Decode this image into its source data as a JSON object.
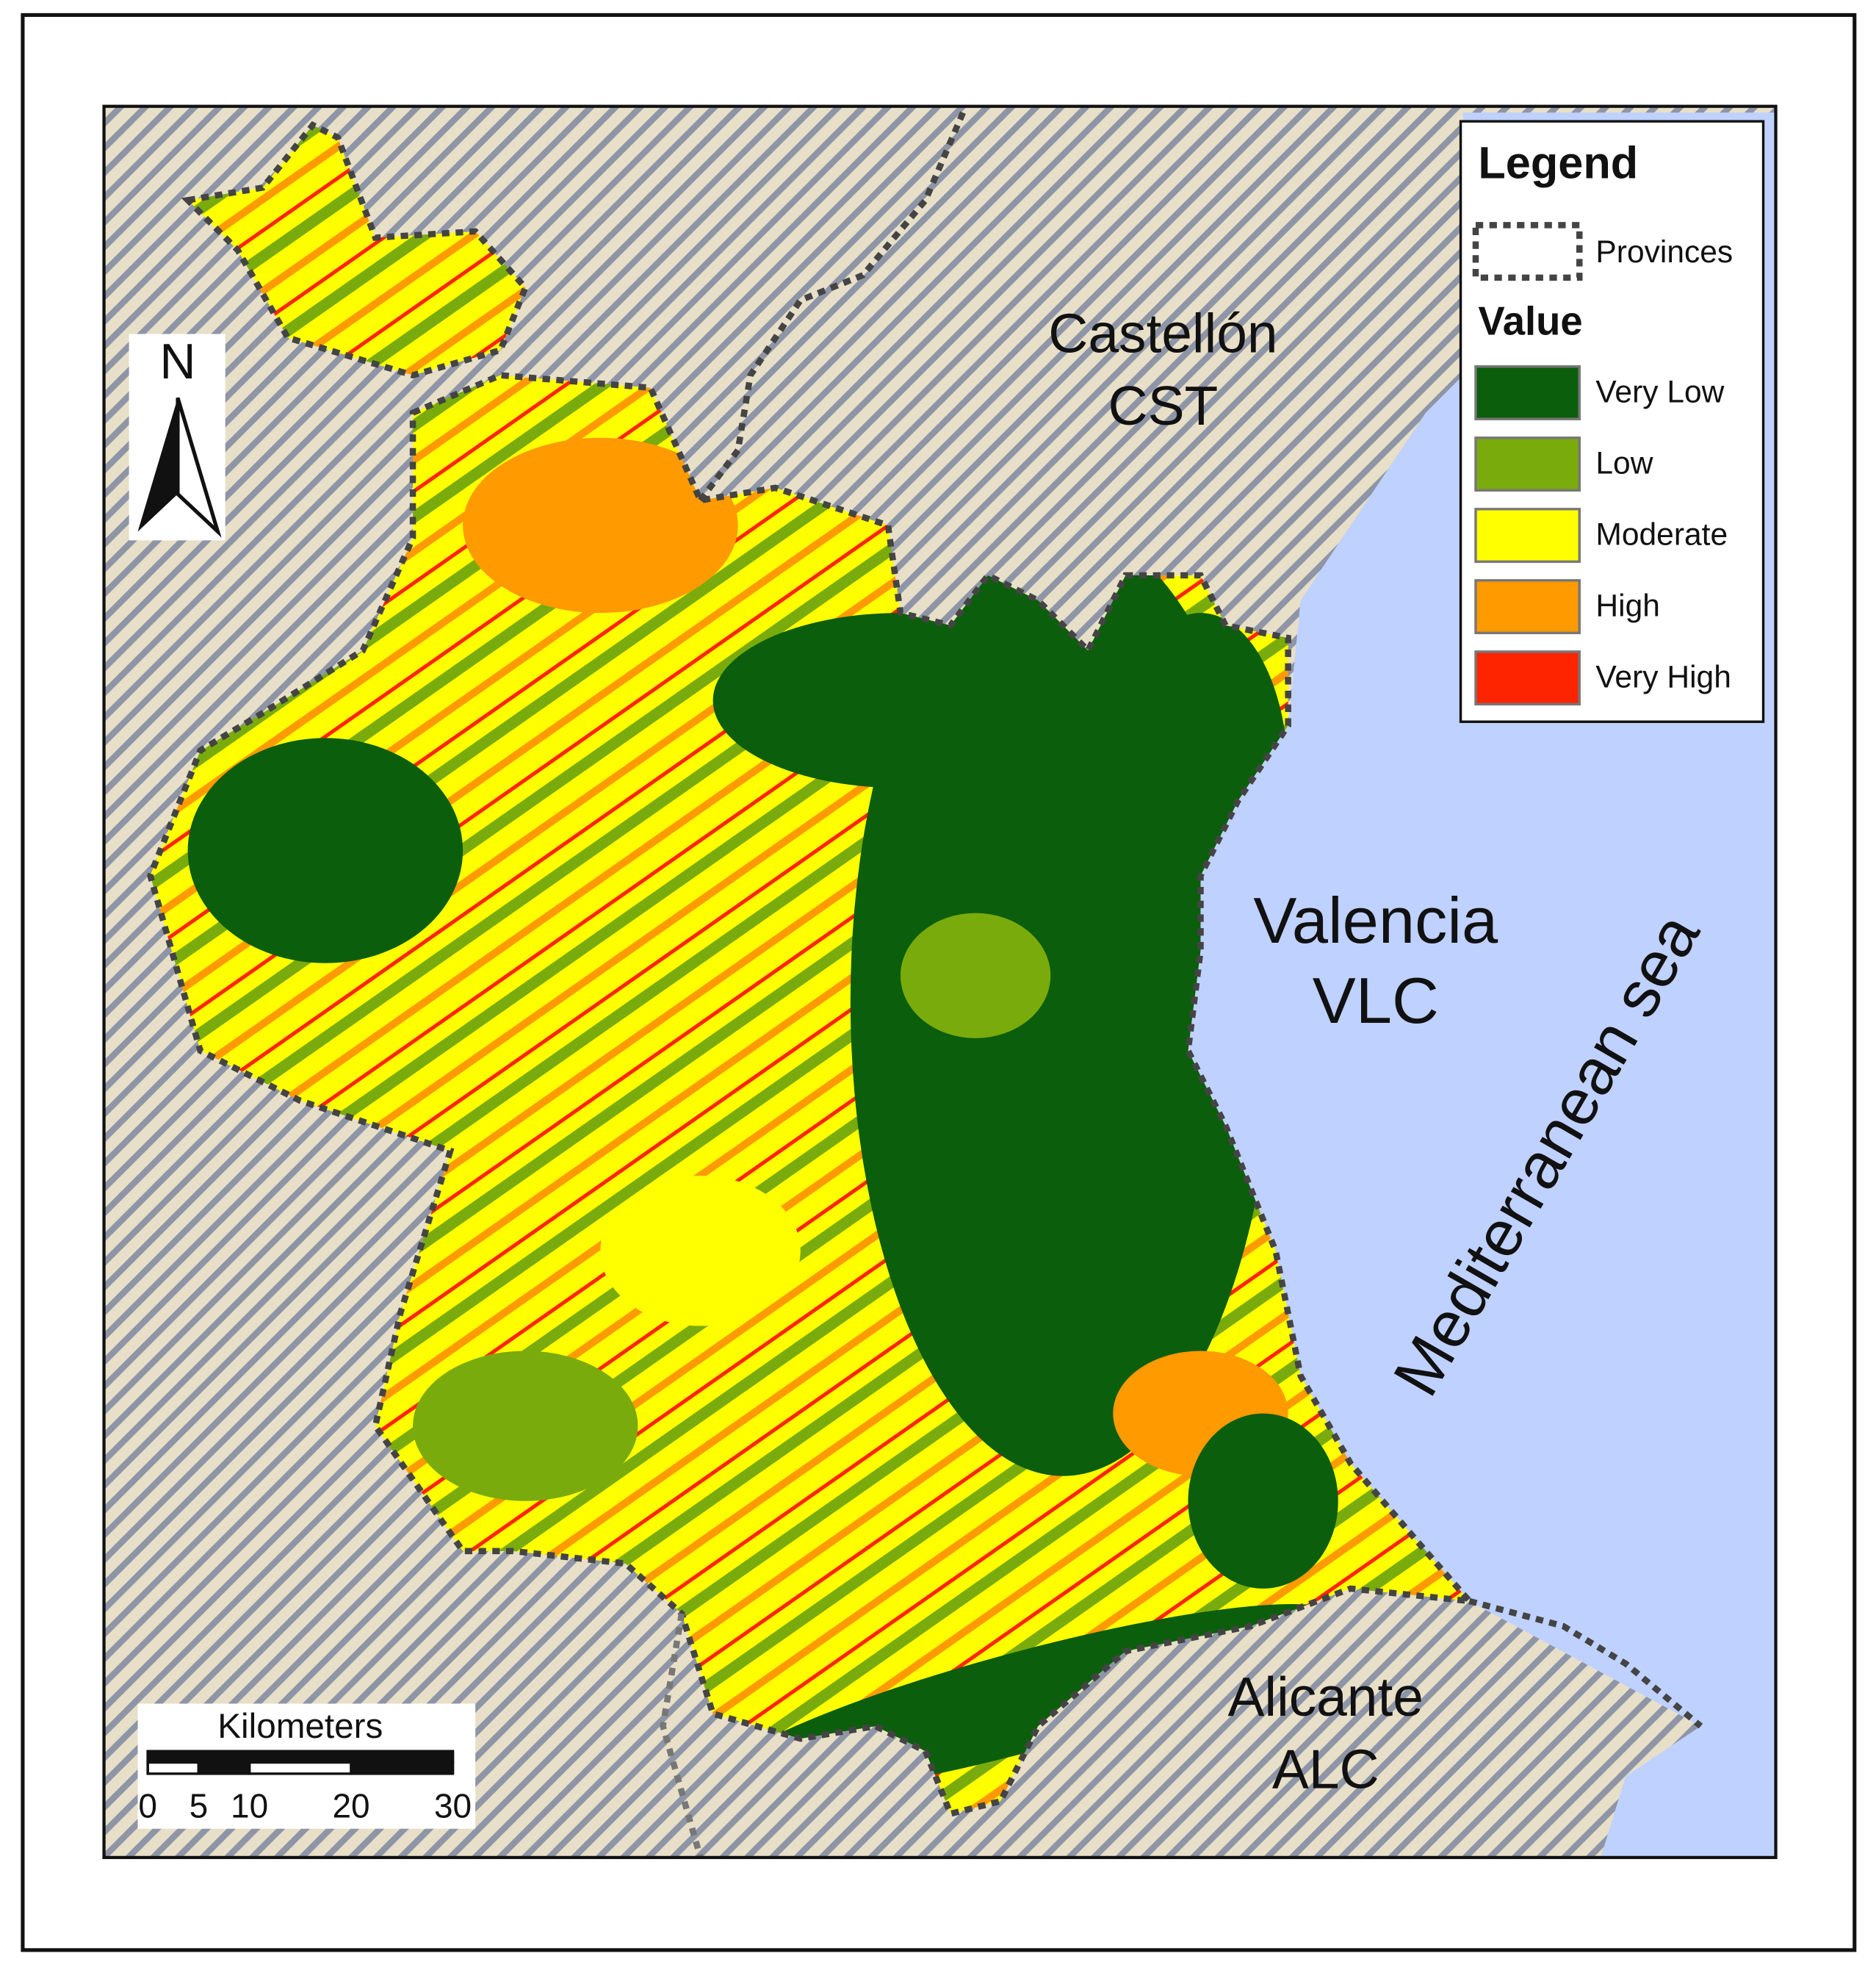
{
  "map": {
    "places": [
      {
        "name": "Castellón",
        "code": "CST"
      },
      {
        "name": "Valencia",
        "code": "VLC"
      },
      {
        "name": "Alicante",
        "code": "ALC"
      }
    ],
    "sea": "Mediterranean sea",
    "north": "N",
    "legend": {
      "title": "Legend",
      "provinces": "Provinces",
      "value_title": "Value",
      "classes": [
        {
          "label": "Very Low",
          "color": "#0b5e0b"
        },
        {
          "label": "Low",
          "color": "#7aab0c"
        },
        {
          "label": "Moderate",
          "color": "#ffff00"
        },
        {
          "label": "High",
          "color": "#ff9a00"
        },
        {
          "label": "Very High",
          "color": "#ff2400"
        }
      ]
    },
    "scale": {
      "unit": "Kilometers",
      "ticks": [
        0,
        5,
        10,
        20,
        30
      ]
    }
  }
}
